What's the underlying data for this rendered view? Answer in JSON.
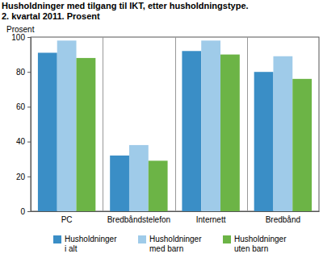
{
  "chart_data": {
    "type": "bar",
    "title": "Husholdninger med tilgang til IKT, etter husholdningstype.",
    "subtitle": "2. kvartal 2011. Prosent",
    "y_label": "Prosent",
    "categories": [
      "PC",
      "Bredbåndstelefon",
      "Internett",
      "Bredbånd"
    ],
    "series": [
      {
        "name": "Husholdninger i alt",
        "color": "#3a8ec6",
        "values": [
          91,
          32,
          92,
          80
        ]
      },
      {
        "name": "Husholdninger med barn",
        "color": "#9fcbe9",
        "values": [
          98,
          38,
          98,
          89
        ]
      },
      {
        "name": "Husholdninger uten barn",
        "color": "#6cb446",
        "values": [
          88,
          29,
          90,
          76
        ]
      }
    ],
    "ylim": [
      0,
      100
    ],
    "yticks": [
      0,
      20,
      40,
      60,
      80,
      100
    ],
    "grid": false,
    "legend": "bottom"
  }
}
